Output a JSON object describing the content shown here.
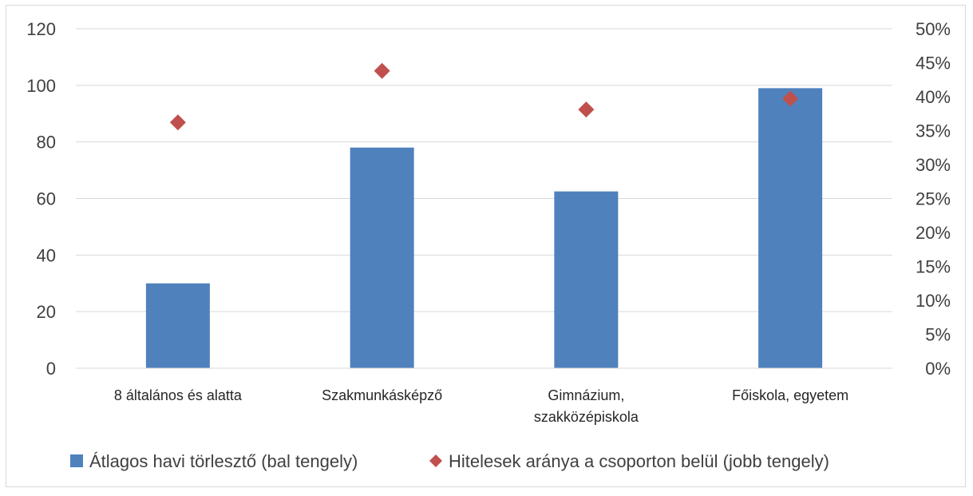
{
  "chart_data": {
    "type": "bar",
    "categories": [
      [
        "8 általános és alatta"
      ],
      [
        "Szakmunkásképző"
      ],
      [
        "Gimnázium,",
        "szakközépiskola"
      ],
      [
        "Főiskola, egyetem"
      ]
    ],
    "series": [
      {
        "name": "Átlagos havi törlesztő (bal tengely)",
        "type": "bar",
        "axis": "left",
        "color": "#4f81bd",
        "values": [
          30,
          78,
          62.5,
          99
        ]
      },
      {
        "name": "Hitelesek aránya a csoporton belül (jobb tengely)",
        "type": "scatter",
        "marker": "diamond",
        "axis": "right",
        "color": "#c0504d",
        "values": [
          0.362,
          0.438,
          0.381,
          0.397
        ]
      }
    ],
    "y_left": {
      "min": 0,
      "max": 120,
      "ticks": [
        "0",
        "20",
        "40",
        "60",
        "80",
        "100",
        "120"
      ]
    },
    "y_right": {
      "min": 0,
      "max": 0.5,
      "ticks": [
        "0%",
        "5%",
        "10%",
        "15%",
        "20%",
        "25%",
        "30%",
        "35%",
        "40%",
        "45%",
        "50%"
      ]
    },
    "grid": true,
    "legend_position": "bottom"
  }
}
